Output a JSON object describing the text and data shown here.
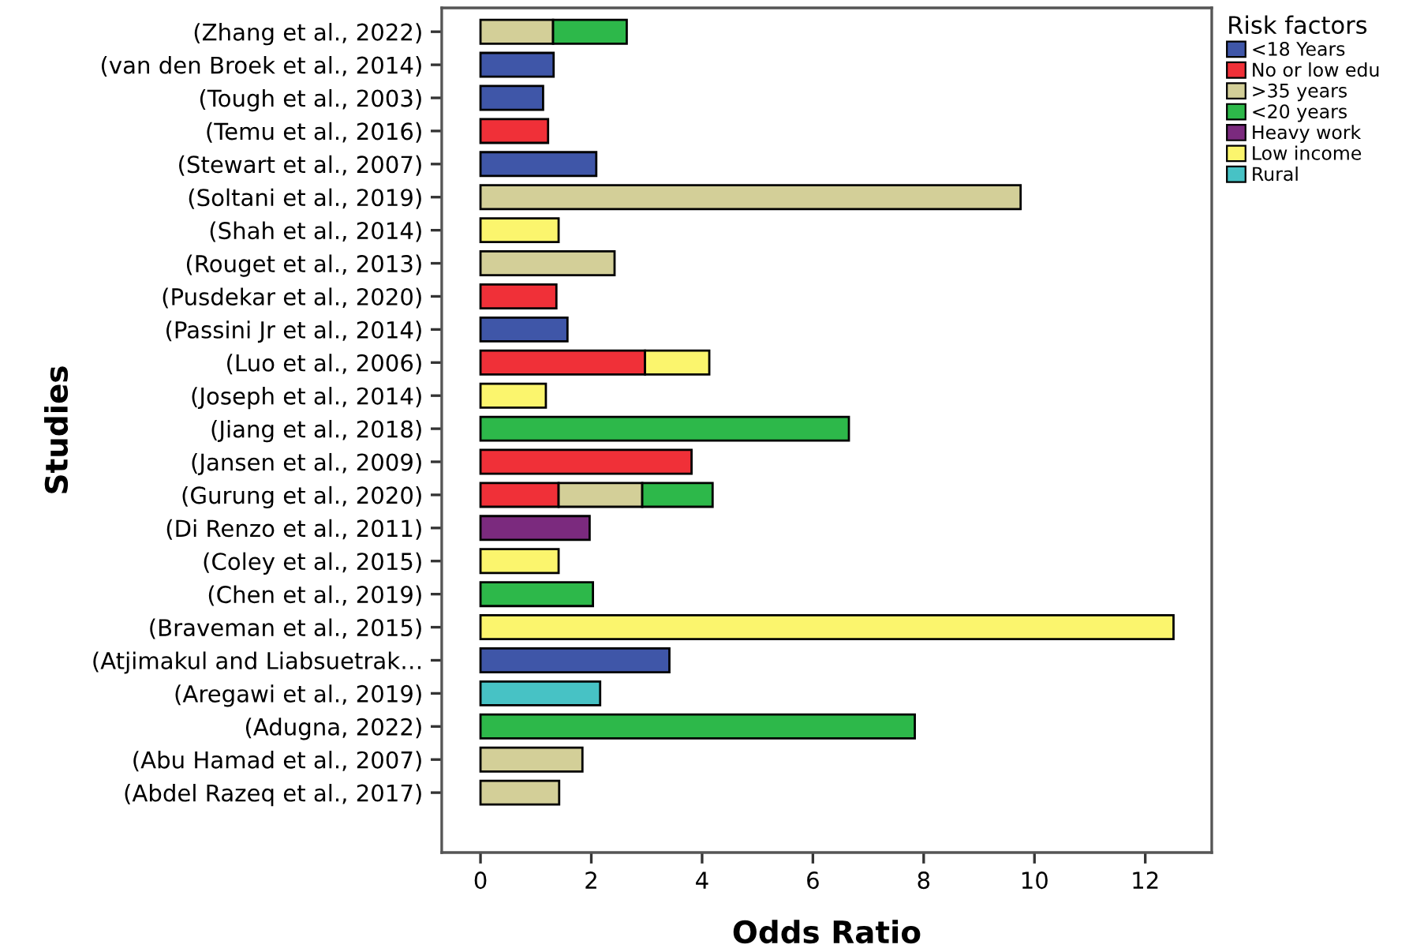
{
  "chart_data": {
    "type": "bar",
    "orientation": "horizontal",
    "stacked": true,
    "xlabel": "Odds Ratio",
    "ylabel": "Studies",
    "legend_title": "Risk factors",
    "legend": "top right",
    "grid": false,
    "categories": [
      "(Zhang et al., 2022)",
      "(van den Broek et al., 2014)",
      "(Tough et al., 2003)",
      "(Temu et al., 2016)",
      "(Stewart et al., 2007)",
      "(Soltani et al., 2019)",
      "(Shah et al., 2014)",
      "(Rouget et al., 2013)",
      "(Pusdekar et al., 2020)",
      "(Passini Jr et al., 2014)",
      "(Luo et al., 2006)",
      "(Joseph et al., 2014)",
      "(Jiang et al., 2018)",
      "(Jansen et al., 2009)",
      "(Gurung et al., 2020)",
      "(Di Renzo et al., 2011)",
      "(Coley et al., 2015)",
      "(Chen et al., 2019)",
      "(Braveman et al., 2015)",
      "(Atjimakul and Liabsuetrak…",
      "(Aregawi et al., 2019)",
      "(Adugna, 2022)",
      "(Abu Hamad et al., 2007)",
      "(Abdel Razeq et al., 2017)"
    ],
    "xlim": [
      -0.7,
      13.2
    ],
    "xticks": [
      0,
      2,
      4,
      6,
      8,
      10,
      12
    ],
    "series": [
      {
        "name": "<18 Years",
        "color": "#3f56a8",
        "values": [
          null,
          1.32,
          1.13,
          null,
          2.09,
          null,
          null,
          null,
          null,
          1.57,
          null,
          null,
          null,
          null,
          null,
          null,
          null,
          null,
          null,
          3.41,
          null,
          null,
          null,
          null
        ]
      },
      {
        "name": "No or low edu",
        "color": "#f03038",
        "values": [
          null,
          null,
          null,
          1.22,
          null,
          null,
          null,
          null,
          1.37,
          null,
          2.97,
          null,
          null,
          3.81,
          1.41,
          null,
          null,
          null,
          null,
          null,
          null,
          null,
          null,
          null
        ]
      },
      {
        "name": ">35 years",
        "color": "#d3cf98",
        "values": [
          1.31,
          null,
          null,
          null,
          null,
          9.75,
          null,
          2.42,
          null,
          null,
          null,
          null,
          null,
          null,
          1.51,
          null,
          null,
          null,
          null,
          null,
          null,
          null,
          1.84,
          1.42
        ]
      },
      {
        "name": "<20 years",
        "color": "#2db84a",
        "values": [
          1.33,
          null,
          null,
          null,
          null,
          null,
          null,
          null,
          null,
          null,
          null,
          null,
          6.65,
          null,
          1.27,
          null,
          null,
          2.03,
          null,
          null,
          null,
          7.84,
          null,
          null
        ]
      },
      {
        "name": "Heavy work",
        "color": "#7b2a7e",
        "values": [
          null,
          null,
          null,
          null,
          null,
          null,
          null,
          null,
          null,
          null,
          null,
          null,
          null,
          null,
          null,
          1.97,
          null,
          null,
          null,
          null,
          null,
          null,
          null,
          null
        ]
      },
      {
        "name": "Low income",
        "color": "#fbf56d",
        "values": [
          null,
          null,
          null,
          null,
          null,
          null,
          1.41,
          null,
          null,
          null,
          1.16,
          1.18,
          null,
          null,
          null,
          null,
          1.41,
          null,
          12.51,
          null,
          null,
          null,
          null,
          null
        ]
      },
      {
        "name": "Rural",
        "color": "#47c2c5",
        "values": [
          null,
          null,
          null,
          null,
          null,
          null,
          null,
          null,
          null,
          null,
          null,
          null,
          null,
          null,
          null,
          null,
          null,
          null,
          null,
          null,
          2.16,
          null,
          null,
          null
        ]
      }
    ]
  }
}
